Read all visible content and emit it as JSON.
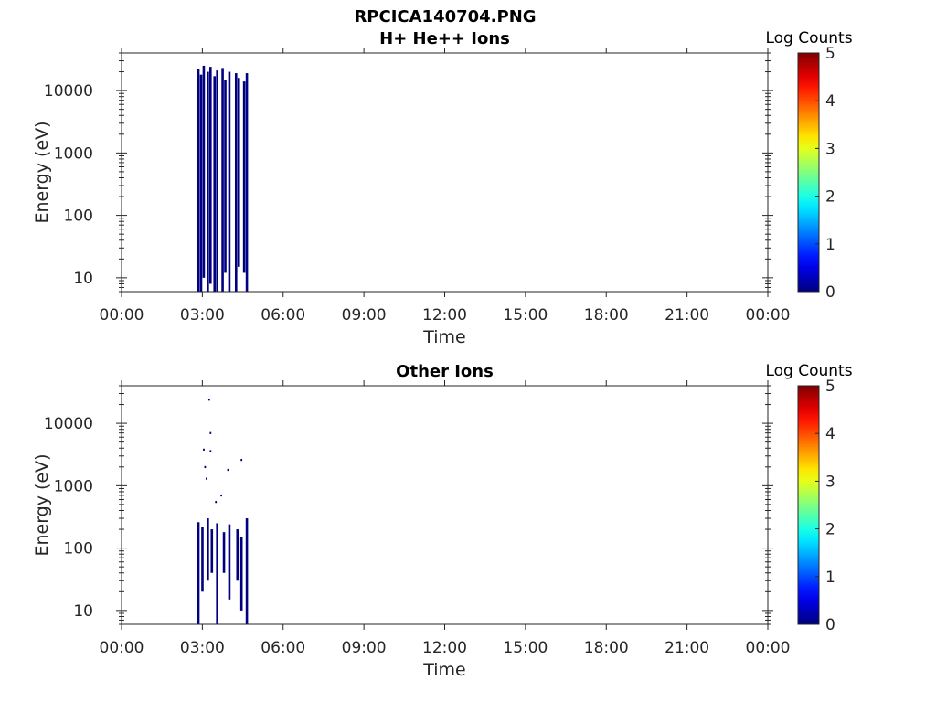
{
  "figure_title": "RPCICA140704.PNG",
  "chart_data": [
    {
      "type": "heatmap",
      "title": "H+ He++ Ions",
      "xlabel": "Time",
      "ylabel": "Energy (eV)",
      "x_ticks": [
        "00:00",
        "03:00",
        "06:00",
        "09:00",
        "12:00",
        "15:00",
        "18:00",
        "21:00",
        "00:00"
      ],
      "xlim_hours": [
        0,
        24
      ],
      "y_scale": "log",
      "ylim": [
        6,
        40000
      ],
      "y_ticks": [
        10,
        100,
        1000,
        10000
      ],
      "y_tick_labels": [
        "10",
        "100",
        "1000",
        "10000"
      ],
      "colorbar": {
        "label": "Log Counts",
        "range": [
          0,
          5
        ],
        "ticks": [
          "0",
          "1",
          "2",
          "3",
          "4",
          "5"
        ],
        "colormap": "jet"
      },
      "data_color": "#000080",
      "streaks": [
        {
          "t_hours": 2.85,
          "e_min": 6,
          "e_max": 22000
        },
        {
          "t_hours": 2.95,
          "e_min": 6,
          "e_max": 18000
        },
        {
          "t_hours": 3.05,
          "e_min": 10,
          "e_max": 25000
        },
        {
          "t_hours": 3.2,
          "e_min": 6,
          "e_max": 20000
        },
        {
          "t_hours": 3.3,
          "e_min": 8,
          "e_max": 24000
        },
        {
          "t_hours": 3.45,
          "e_min": 6,
          "e_max": 17000
        },
        {
          "t_hours": 3.55,
          "e_min": 6,
          "e_max": 21000
        },
        {
          "t_hours": 3.75,
          "e_min": 6,
          "e_max": 23000
        },
        {
          "t_hours": 3.85,
          "e_min": 12,
          "e_max": 15000
        },
        {
          "t_hours": 4.0,
          "e_min": 6,
          "e_max": 20000
        },
        {
          "t_hours": 4.25,
          "e_min": 6,
          "e_max": 19000
        },
        {
          "t_hours": 4.35,
          "e_min": 15,
          "e_max": 16000
        },
        {
          "t_hours": 4.55,
          "e_min": 12,
          "e_max": 14000
        },
        {
          "t_hours": 4.65,
          "e_min": 6,
          "e_max": 19000
        }
      ]
    },
    {
      "type": "heatmap",
      "title": "Other Ions",
      "xlabel": "Time",
      "ylabel": "Energy (eV)",
      "x_ticks": [
        "00:00",
        "03:00",
        "06:00",
        "09:00",
        "12:00",
        "15:00",
        "18:00",
        "21:00",
        "00:00"
      ],
      "xlim_hours": [
        0,
        24
      ],
      "y_scale": "log",
      "ylim": [
        6,
        40000
      ],
      "y_ticks": [
        10,
        100,
        1000,
        10000
      ],
      "y_tick_labels": [
        "10",
        "100",
        "1000",
        "10000"
      ],
      "colorbar": {
        "label": "Log Counts",
        "range": [
          0,
          5
        ],
        "ticks": [
          "0",
          "1",
          "2",
          "3",
          "4",
          "5"
        ],
        "colormap": "jet"
      },
      "data_color": "#000080",
      "streaks": [
        {
          "t_hours": 2.85,
          "e_min": 6,
          "e_max": 260
        },
        {
          "t_hours": 3.0,
          "e_min": 20,
          "e_max": 220
        },
        {
          "t_hours": 3.2,
          "e_min": 30,
          "e_max": 300
        },
        {
          "t_hours": 3.35,
          "e_min": 40,
          "e_max": 200
        },
        {
          "t_hours": 3.55,
          "e_min": 6,
          "e_max": 250
        },
        {
          "t_hours": 3.8,
          "e_min": 40,
          "e_max": 180
        },
        {
          "t_hours": 4.0,
          "e_min": 15,
          "e_max": 240
        },
        {
          "t_hours": 4.3,
          "e_min": 30,
          "e_max": 200
        },
        {
          "t_hours": 4.45,
          "e_min": 10,
          "e_max": 150
        },
        {
          "t_hours": 4.65,
          "e_min": 6,
          "e_max": 300
        }
      ],
      "points": [
        {
          "t_hours": 3.25,
          "e": 24000
        },
        {
          "t_hours": 3.3,
          "e": 7000
        },
        {
          "t_hours": 3.05,
          "e": 3800
        },
        {
          "t_hours": 3.3,
          "e": 3600
        },
        {
          "t_hours": 3.1,
          "e": 2000
        },
        {
          "t_hours": 4.45,
          "e": 2600
        },
        {
          "t_hours": 3.95,
          "e": 1800
        },
        {
          "t_hours": 3.15,
          "e": 1300
        },
        {
          "t_hours": 3.7,
          "e": 700
        },
        {
          "t_hours": 3.5,
          "e": 550
        }
      ]
    }
  ]
}
